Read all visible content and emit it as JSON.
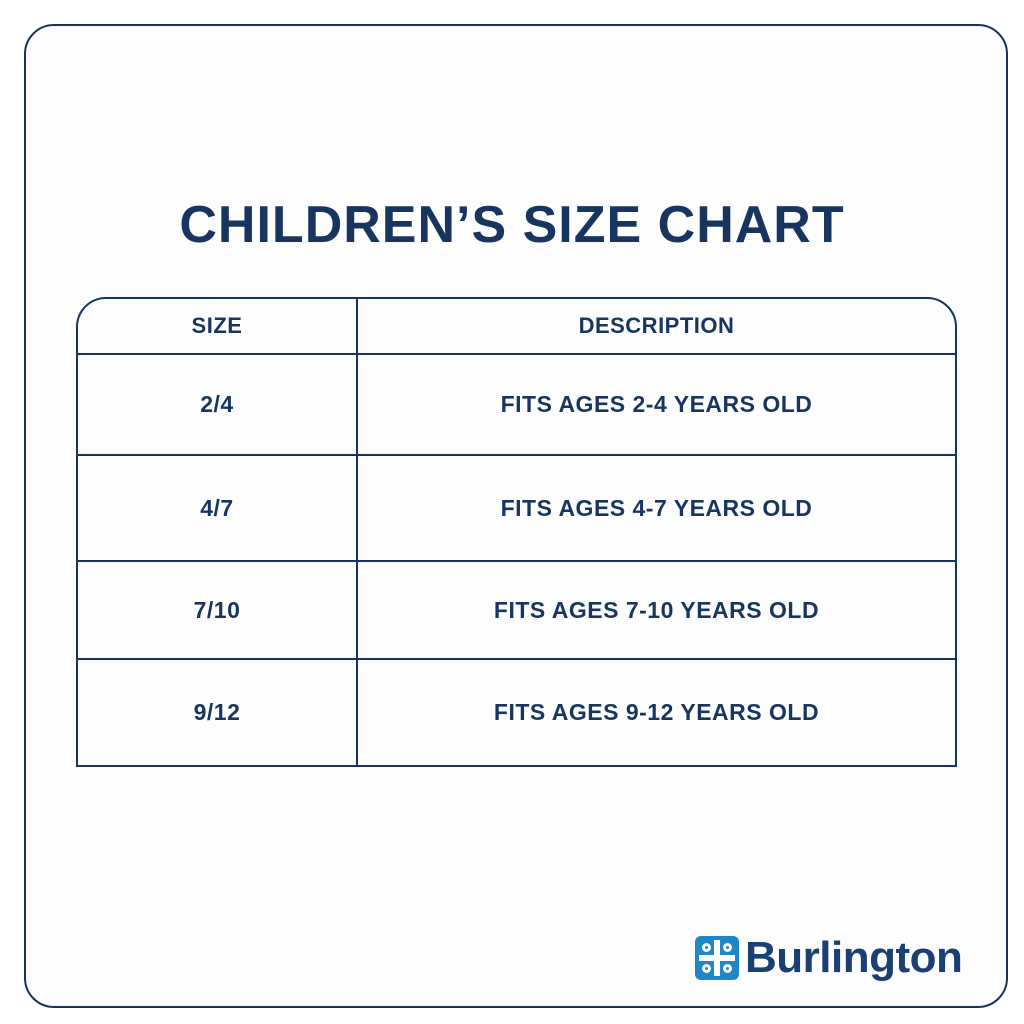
{
  "title": "CHILDREN’S SIZE CHART",
  "table": {
    "headers": {
      "size": "SIZE",
      "description": "DESCRIPTION"
    },
    "rows": [
      {
        "size": "2/4",
        "description": "FITS AGES 2-4 YEARS OLD"
      },
      {
        "size": "4/7",
        "description": "FITS AGES 4-7 YEARS OLD"
      },
      {
        "size": "7/10",
        "description": "FITS AGES 7-10 YEARS OLD"
      },
      {
        "size": "9/12",
        "description": "FITS AGES 9-12 YEARS OLD"
      }
    ]
  },
  "brand": {
    "logo_icon": "burlington-mark-icon",
    "name": "Burlington",
    "primary_color": "#17355e",
    "logo_color": "#1f86c8"
  }
}
